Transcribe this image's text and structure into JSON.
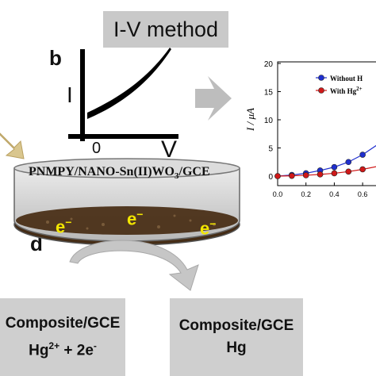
{
  "method_label": "I-V method",
  "panel_b": "b",
  "panel_d": "d",
  "iv_axis": {
    "y_label": "I",
    "x_label": "V",
    "origin_label": "0"
  },
  "electrode_label_main": "PNMPY/NANO-Sn(II)WO",
  "electrode_label_sub": "3",
  "electrode_label_tail": "/GCE",
  "electron_symbol": "e",
  "electron_charge": "−",
  "composite_left": {
    "line1": "Composite/GCE",
    "line2_base": "Hg",
    "line2_sup": "2+",
    "line2_tail": " + 2e",
    "line2_sup2": "-"
  },
  "composite_right": {
    "line1": "Composite/GCE",
    "line2": "Hg"
  },
  "colors": {
    "arrow": "#c9c9c9",
    "arrow_left": "#c8b070",
    "blue": "#1f2fcf",
    "red": "#d01818",
    "electron": "#f2e600"
  },
  "chart_data": {
    "type": "line",
    "ylabel": "I / μA",
    "ylim": [
      0,
      20
    ],
    "yticks": [
      "0",
      "5",
      "10",
      "15",
      "20"
    ],
    "xticks": [
      "0.0",
      "0.2",
      "0.4",
      "0.6"
    ],
    "series": [
      {
        "name": "Without H",
        "color": "#1f2fcf",
        "x": [
          0.0,
          0.1,
          0.2,
          0.3,
          0.4,
          0.5,
          0.6,
          0.7
        ],
        "y": [
          0.0,
          0.2,
          0.5,
          1.0,
          1.6,
          2.5,
          3.8,
          5.5
        ]
      },
      {
        "name": "With Hg",
        "name_sup": "2+",
        "color": "#d01818",
        "x": [
          0.0,
          0.1,
          0.2,
          0.3,
          0.4,
          0.5,
          0.6,
          0.7
        ],
        "y": [
          0.0,
          0.05,
          0.15,
          0.3,
          0.5,
          0.8,
          1.2,
          1.7
        ]
      }
    ]
  }
}
